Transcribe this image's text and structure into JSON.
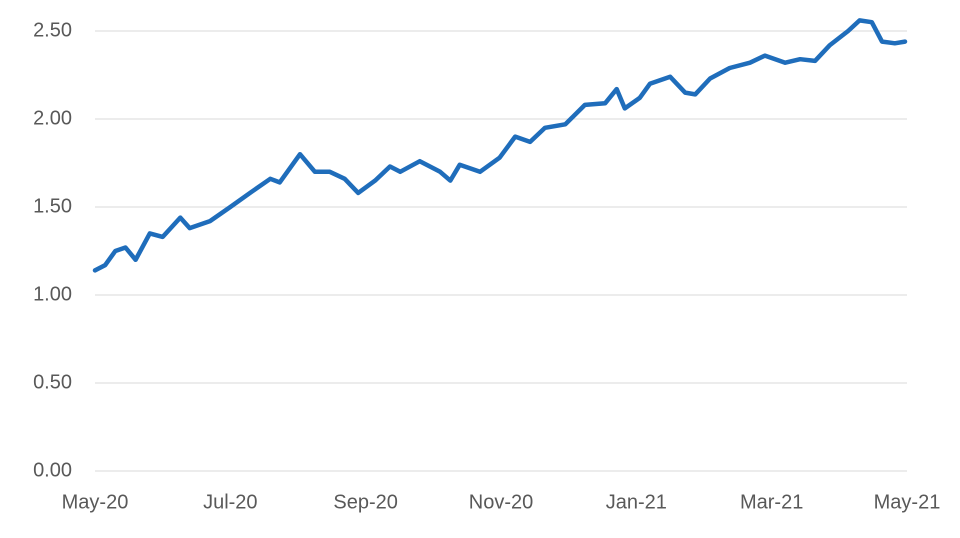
{
  "chart_data": {
    "type": "line",
    "x": [
      0,
      0.15,
      0.3,
      0.45,
      0.6,
      0.81,
      1.0,
      1.26,
      1.4,
      1.7,
      2.0,
      2.29,
      2.59,
      2.73,
      3.03,
      3.25,
      3.47,
      3.69,
      3.89,
      4.14,
      4.36,
      4.51,
      4.8,
      5.1,
      5.25,
      5.39,
      5.69,
      5.98,
      6.21,
      6.43,
      6.65,
      6.95,
      7.24,
      7.54,
      7.71,
      7.83,
      8.05,
      8.2,
      8.5,
      8.72,
      8.87,
      9.09,
      9.38,
      9.68,
      9.9,
      10.2,
      10.42,
      10.64,
      10.86,
      11.13,
      11.3,
      11.48,
      11.63,
      11.82,
      11.97
    ],
    "series": [
      {
        "color": "#1f6dbb",
        "values": [
          1.14,
          1.17,
          1.25,
          1.27,
          1.2,
          1.35,
          1.33,
          1.44,
          1.38,
          1.42,
          1.5,
          1.58,
          1.66,
          1.64,
          1.8,
          1.7,
          1.7,
          1.66,
          1.58,
          1.65,
          1.73,
          1.7,
          1.76,
          1.7,
          1.65,
          1.74,
          1.7,
          1.78,
          1.9,
          1.87,
          1.95,
          1.97,
          2.08,
          2.09,
          2.17,
          2.06,
          2.12,
          2.2,
          2.24,
          2.15,
          2.14,
          2.23,
          2.29,
          2.32,
          2.36,
          2.32,
          2.34,
          2.33,
          2.42,
          2.5,
          2.56,
          2.55,
          2.44,
          2.43,
          2.44
        ]
      }
    ],
    "xlim": [
      0,
      12
    ],
    "xticks": [
      {
        "value": 0,
        "label": "May-20"
      },
      {
        "value": 2,
        "label": "Jul-20"
      },
      {
        "value": 4,
        "label": "Sep-20"
      },
      {
        "value": 6,
        "label": "Nov-20"
      },
      {
        "value": 8,
        "label": "Jan-21"
      },
      {
        "value": 10,
        "label": "Mar-21"
      },
      {
        "value": 12,
        "label": "May-21"
      }
    ],
    "ylim": [
      0,
      2.6
    ],
    "yticks": [
      {
        "value": 0,
        "label": "0.00"
      },
      {
        "value": 0.5,
        "label": "0.50"
      },
      {
        "value": 1,
        "label": "1.00"
      },
      {
        "value": 1.5,
        "label": "1.50"
      },
      {
        "value": 2,
        "label": "2.00"
      },
      {
        "value": 2.5,
        "label": "2.50"
      }
    ],
    "grid": true
  }
}
